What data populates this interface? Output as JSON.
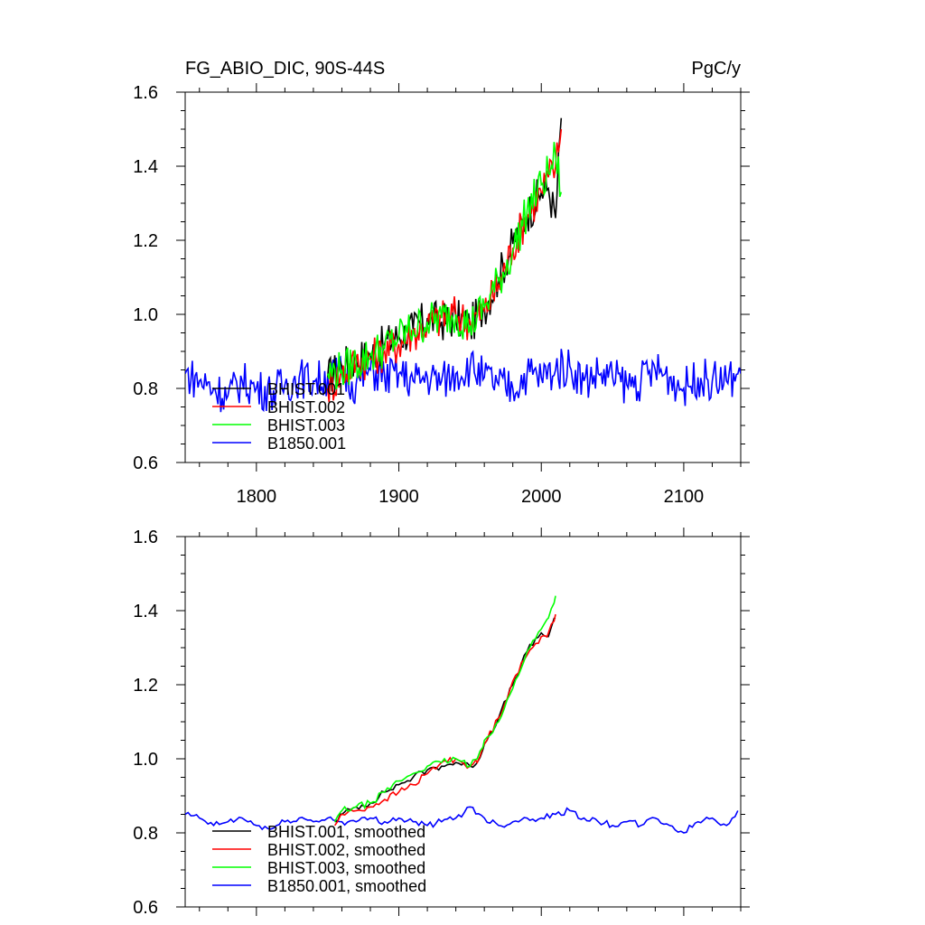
{
  "header": {
    "title": "FG_ABIO_DIC, 90S-44S",
    "units": "PgC/y"
  },
  "chart_data": [
    {
      "type": "line",
      "title": "FG_ABIO_DIC, 90S-44S",
      "units": "PgC/y",
      "xlim": [
        1750,
        2140
      ],
      "ylim": [
        0.6,
        1.6
      ],
      "xticks": [
        1800,
        1900,
        2000,
        2100
      ],
      "xtick_labels": [
        "1800",
        "1900",
        "2000",
        "2100"
      ],
      "yticks": [
        0.6,
        0.8,
        1.0,
        1.2,
        1.4,
        1.6
      ],
      "ytick_labels": [
        "0.6",
        "0.8",
        "1.0",
        "1.2",
        "1.4",
        "1.6"
      ],
      "grid": false,
      "legend_position": "bottom-left",
      "series": [
        {
          "name": "BHIST.001",
          "color": "#000000",
          "x": [
            1850,
            1860,
            1870,
            1880,
            1890,
            1900,
            1910,
            1920,
            1930,
            1940,
            1950,
            1960,
            1970,
            1980,
            1990,
            2000,
            2005,
            2010,
            2014
          ],
          "y": [
            0.83,
            0.86,
            0.88,
            0.89,
            0.92,
            0.94,
            0.96,
            0.99,
            0.98,
            0.99,
            0.97,
            1.02,
            1.1,
            1.19,
            1.27,
            1.33,
            1.34,
            1.26,
            1.53
          ]
        },
        {
          "name": "BHIST.002",
          "color": "#ff0000",
          "x": [
            1850,
            1860,
            1870,
            1880,
            1890,
            1900,
            1910,
            1920,
            1930,
            1940,
            1950,
            1960,
            1970,
            1980,
            1990,
            2000,
            2005,
            2010,
            2014
          ],
          "y": [
            0.8,
            0.84,
            0.87,
            0.88,
            0.9,
            0.92,
            0.95,
            0.97,
            0.99,
            1.0,
            0.98,
            1.01,
            1.08,
            1.18,
            1.27,
            1.33,
            1.37,
            1.4,
            1.5
          ]
        },
        {
          "name": "BHIST.003",
          "color": "#00ff00",
          "x": [
            1850,
            1860,
            1870,
            1880,
            1890,
            1900,
            1910,
            1920,
            1930,
            1940,
            1950,
            1960,
            1970,
            1980,
            1990,
            2000,
            2005,
            2010,
            2014
          ],
          "y": [
            0.84,
            0.85,
            0.87,
            0.89,
            0.91,
            0.94,
            0.96,
            0.98,
            0.99,
            1.0,
            0.97,
            1.02,
            1.09,
            1.17,
            1.28,
            1.35,
            1.38,
            1.43,
            1.33
          ]
        },
        {
          "name": "B1850.001",
          "color": "#0000ff",
          "x": [
            1750,
            1760,
            1770,
            1780,
            1790,
            1800,
            1810,
            1820,
            1830,
            1840,
            1850,
            1860,
            1870,
            1880,
            1890,
            1900,
            1910,
            1920,
            1930,
            1940,
            1950,
            1960,
            1970,
            1980,
            1990,
            2000,
            2010,
            2020,
            2030,
            2040,
            2050,
            2060,
            2070,
            2080,
            2090,
            2100,
            2110,
            2120,
            2130,
            2140
          ],
          "y": [
            0.84,
            0.82,
            0.8,
            0.78,
            0.82,
            0.8,
            0.79,
            0.81,
            0.83,
            0.82,
            0.83,
            0.84,
            0.81,
            0.85,
            0.83,
            0.84,
            0.82,
            0.83,
            0.82,
            0.84,
            0.86,
            0.83,
            0.81,
            0.8,
            0.84,
            0.83,
            0.85,
            0.86,
            0.82,
            0.84,
            0.83,
            0.81,
            0.82,
            0.85,
            0.83,
            0.8,
            0.83,
            0.82,
            0.82,
            0.84
          ]
        }
      ]
    },
    {
      "type": "line",
      "xlim": [
        1750,
        2140
      ],
      "ylim": [
        0.6,
        1.6
      ],
      "xticks": [
        1800,
        1900,
        2000,
        2100
      ],
      "yticks": [
        0.6,
        0.8,
        1.0,
        1.2,
        1.4,
        1.6
      ],
      "ytick_labels": [
        "0.6",
        "0.8",
        "1.0",
        "1.2",
        "1.4",
        "1.6"
      ],
      "grid": false,
      "legend_position": "bottom-left",
      "series": [
        {
          "name": "BHIST.001, smoothed",
          "color": "#000000",
          "x": [
            1855,
            1860,
            1870,
            1880,
            1890,
            1900,
            1910,
            1920,
            1930,
            1940,
            1950,
            1955,
            1960,
            1970,
            1980,
            1990,
            2000,
            2005,
            2010
          ],
          "y": [
            0.83,
            0.85,
            0.87,
            0.88,
            0.91,
            0.93,
            0.95,
            0.97,
            0.98,
            0.99,
            0.98,
            0.99,
            1.04,
            1.11,
            1.2,
            1.29,
            1.34,
            1.33,
            1.38
          ]
        },
        {
          "name": "BHIST.002, smoothed",
          "color": "#ff0000",
          "x": [
            1855,
            1860,
            1870,
            1880,
            1890,
            1900,
            1910,
            1920,
            1930,
            1940,
            1950,
            1955,
            1960,
            1970,
            1980,
            1990,
            2000,
            2005,
            2010
          ],
          "y": [
            0.82,
            0.85,
            0.86,
            0.87,
            0.89,
            0.91,
            0.93,
            0.96,
            0.99,
            1.0,
            0.98,
            0.99,
            1.04,
            1.11,
            1.21,
            1.28,
            1.33,
            1.34,
            1.39
          ]
        },
        {
          "name": "BHIST.003, smoothed",
          "color": "#00ff00",
          "x": [
            1855,
            1860,
            1870,
            1880,
            1890,
            1900,
            1910,
            1920,
            1930,
            1940,
            1950,
            1955,
            1960,
            1970,
            1980,
            1990,
            2000,
            2005,
            2010
          ],
          "y": [
            0.83,
            0.86,
            0.87,
            0.88,
            0.91,
            0.94,
            0.96,
            0.98,
            0.99,
            1.0,
            0.98,
            1.0,
            1.05,
            1.1,
            1.19,
            1.29,
            1.35,
            1.38,
            1.44
          ]
        },
        {
          "name": "B1850.001, smoothed",
          "color": "#0000ff",
          "x": [
            1750,
            1760,
            1770,
            1780,
            1790,
            1800,
            1810,
            1820,
            1830,
            1840,
            1850,
            1860,
            1870,
            1880,
            1890,
            1900,
            1910,
            1920,
            1930,
            1940,
            1950,
            1960,
            1970,
            1980,
            1990,
            2000,
            2010,
            2020,
            2030,
            2040,
            2050,
            2060,
            2070,
            2080,
            2090,
            2100,
            2110,
            2120,
            2130,
            2138
          ],
          "y": [
            0.85,
            0.84,
            0.82,
            0.83,
            0.84,
            0.82,
            0.81,
            0.83,
            0.84,
            0.83,
            0.84,
            0.83,
            0.83,
            0.84,
            0.83,
            0.84,
            0.83,
            0.82,
            0.83,
            0.84,
            0.87,
            0.84,
            0.82,
            0.83,
            0.84,
            0.84,
            0.85,
            0.86,
            0.84,
            0.83,
            0.82,
            0.83,
            0.82,
            0.84,
            0.82,
            0.8,
            0.83,
            0.84,
            0.82,
            0.86
          ]
        }
      ]
    }
  ]
}
